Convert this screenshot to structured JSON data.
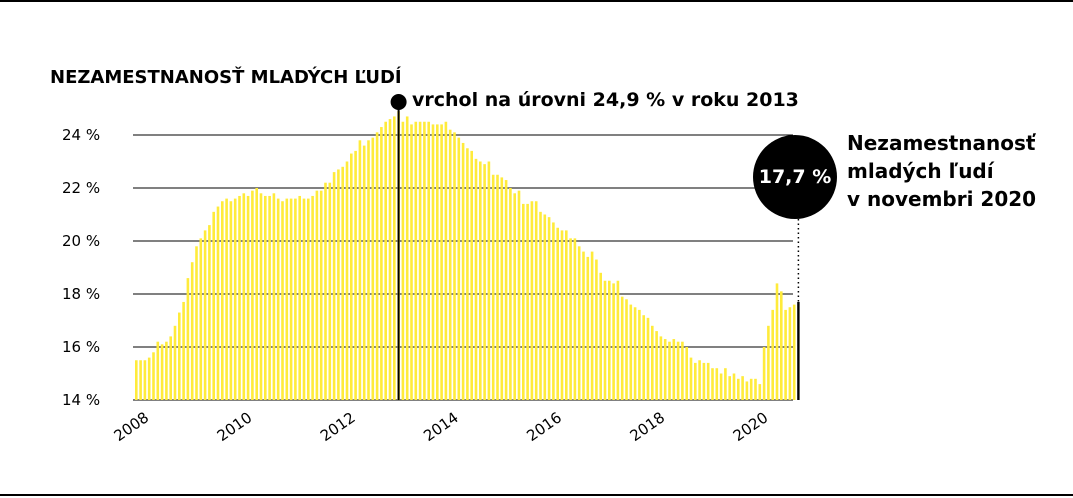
{
  "chart_data": {
    "type": "bar",
    "title": "NEZAMESTNANOSŤ MLADÝCH ĽUDÍ",
    "ylim": [
      14,
      25
    ],
    "y_ticks": [
      "14 %",
      "16 %",
      "18 %",
      "20 %",
      "22 %",
      "24 %"
    ],
    "y_tick_values": [
      14,
      16,
      18,
      20,
      22,
      24
    ],
    "x_ticks": [
      "2008",
      "2010",
      "2012",
      "2014",
      "2016",
      "2018",
      "2020"
    ],
    "x_start": "2008-01",
    "grid": true,
    "bar_color": "#FFEB3B",
    "highlight_color": "#000000",
    "peak": {
      "value": 24.9,
      "year": 2013,
      "label": "vrchol na úrovni 24,9 % v roku 2013"
    },
    "latest": {
      "value": 17.7,
      "label_value": "17,7 %",
      "label": "Nezamestnanosť mladých ľudí v novembri 2020"
    },
    "values": [
      15.5,
      15.5,
      15.5,
      15.6,
      15.8,
      16.2,
      16.1,
      16.2,
      16.4,
      16.8,
      17.3,
      17.7,
      18.6,
      19.2,
      19.8,
      20.1,
      20.4,
      20.6,
      21.1,
      21.3,
      21.5,
      21.6,
      21.5,
      21.6,
      21.7,
      21.8,
      21.7,
      21.9,
      22.0,
      21.8,
      21.7,
      21.7,
      21.8,
      21.6,
      21.5,
      21.6,
      21.6,
      21.6,
      21.7,
      21.6,
      21.6,
      21.7,
      21.9,
      21.9,
      22.2,
      22.2,
      22.6,
      22.7,
      22.8,
      23.0,
      23.3,
      23.4,
      23.8,
      23.6,
      23.8,
      23.9,
      24.1,
      24.3,
      24.5,
      24.6,
      24.7,
      24.9,
      24.5,
      24.7,
      24.4,
      24.5,
      24.5,
      24.5,
      24.5,
      24.4,
      24.4,
      24.4,
      24.5,
      24.2,
      24.1,
      23.9,
      23.7,
      23.5,
      23.4,
      23.1,
      23.0,
      22.9,
      23.0,
      22.5,
      22.5,
      22.4,
      22.3,
      22.0,
      21.8,
      21.9,
      21.4,
      21.4,
      21.5,
      21.5,
      21.1,
      21.0,
      20.9,
      20.7,
      20.5,
      20.4,
      20.4,
      20.1,
      20.1,
      19.8,
      19.6,
      19.4,
      19.6,
      19.3,
      18.8,
      18.5,
      18.5,
      18.4,
      18.5,
      17.9,
      17.8,
      17.6,
      17.5,
      17.4,
      17.2,
      17.1,
      16.8,
      16.6,
      16.4,
      16.3,
      16.2,
      16.3,
      16.2,
      16.2,
      16.0,
      15.6,
      15.4,
      15.5,
      15.4,
      15.4,
      15.2,
      15.2,
      15.0,
      15.2,
      14.9,
      15.0,
      14.8,
      14.9,
      14.7,
      14.8,
      14.8,
      14.6,
      16.0,
      16.8,
      17.4,
      18.4,
      18.1,
      17.4,
      17.5,
      17.6,
      17.7
    ]
  }
}
